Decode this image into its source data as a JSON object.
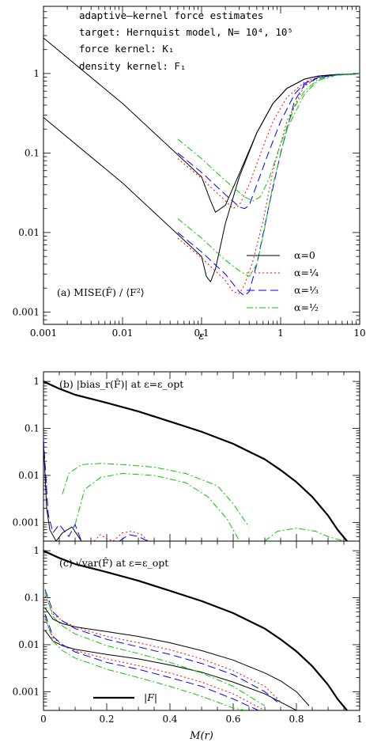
{
  "chart_data": [
    {
      "id": "a",
      "type": "line",
      "scale": {
        "x": "log",
        "y": "log"
      },
      "xlim": [
        0.001,
        10
      ],
      "ylim": [
        0.0007,
        7
      ],
      "xlabel": "ε",
      "xticklabels": [
        "0.001",
        "0.01",
        "0.1",
        "1",
        "10"
      ],
      "yticklabels": [
        "0.001",
        "0.01",
        "0.1",
        "1"
      ],
      "info_lines": [
        "adaptive–kernel force estimates",
        "target: Hernquist model, N= 10⁴, 10⁵",
        "force kernel:    K₁",
        "density kernel:  F₁"
      ],
      "label": "(a)  MISE(F̂)  /  ⟨F²⟩",
      "legend": [
        "α=0",
        "α=¼",
        "α=⅓",
        "α=½"
      ],
      "series": [
        {
          "alpha": "0",
          "N": "10^4",
          "color": "#000000",
          "dash": "",
          "x": [
            0.001,
            0.01,
            0.1,
            0.13,
            0.15,
            0.2,
            0.3,
            0.5,
            0.8,
            1.2,
            2,
            3,
            5,
            10
          ],
          "y": [
            2.8,
            0.42,
            0.05,
            0.025,
            0.018,
            0.022,
            0.055,
            0.18,
            0.42,
            0.65,
            0.85,
            0.93,
            0.97,
            0.99
          ]
        },
        {
          "alpha": "0",
          "N": "10^5",
          "color": "#000000",
          "dash": "",
          "x": [
            0.001,
            0.01,
            0.1,
            0.115,
            0.13,
            0.15,
            0.2,
            0.3,
            0.5,
            0.8,
            1.2,
            2,
            3,
            5,
            10
          ],
          "y": [
            0.28,
            0.042,
            0.005,
            0.0028,
            0.0024,
            0.0035,
            0.013,
            0.05,
            0.18,
            0.42,
            0.65,
            0.85,
            0.93,
            0.97,
            0.99
          ]
        },
        {
          "alpha": "1/4",
          "N": "10^4",
          "color": "#ff0000",
          "dash": "2,3",
          "x": [
            0.05,
            0.1,
            0.2,
            0.25,
            0.3,
            0.4,
            0.6,
            0.8,
            1.2,
            2,
            3,
            5,
            10
          ],
          "y": [
            0.085,
            0.048,
            0.025,
            0.02,
            0.022,
            0.04,
            0.12,
            0.25,
            0.5,
            0.78,
            0.9,
            0.96,
            0.99
          ]
        },
        {
          "alpha": "1/4",
          "N": "10^5",
          "color": "#ff0000",
          "dash": "2,3",
          "x": [
            0.05,
            0.1,
            0.2,
            0.25,
            0.3,
            0.35,
            0.45,
            0.6,
            0.8,
            1.2,
            2,
            3,
            5,
            10
          ],
          "y": [
            0.0085,
            0.0048,
            0.0025,
            0.0018,
            0.0017,
            0.0022,
            0.0045,
            0.014,
            0.06,
            0.25,
            0.7,
            0.88,
            0.96,
            0.99
          ]
        },
        {
          "alpha": "1/3",
          "N": "10^4",
          "color": "#0000ff",
          "dash": "10,5",
          "x": [
            0.05,
            0.1,
            0.2,
            0.3,
            0.35,
            0.4,
            0.5,
            0.7,
            1,
            1.5,
            2,
            3,
            5,
            10
          ],
          "y": [
            0.1,
            0.057,
            0.03,
            0.021,
            0.02,
            0.022,
            0.04,
            0.1,
            0.25,
            0.55,
            0.75,
            0.9,
            0.96,
            0.99
          ]
        },
        {
          "alpha": "1/3",
          "N": "10^5",
          "color": "#0000ff",
          "dash": "10,5",
          "x": [
            0.05,
            0.1,
            0.2,
            0.3,
            0.35,
            0.4,
            0.5,
            0.7,
            1,
            1.5,
            2,
            3,
            5,
            10
          ],
          "y": [
            0.01,
            0.0057,
            0.003,
            0.0018,
            0.0016,
            0.0018,
            0.004,
            0.02,
            0.1,
            0.45,
            0.72,
            0.89,
            0.96,
            0.99
          ]
        },
        {
          "alpha": "1/2",
          "N": "10^4",
          "color": "#00cc00",
          "dash": "8,3,2,3",
          "x": [
            0.05,
            0.1,
            0.2,
            0.35,
            0.45,
            0.55,
            0.7,
            1,
            1.5,
            2,
            3,
            5,
            10
          ],
          "y": [
            0.15,
            0.085,
            0.045,
            0.028,
            0.025,
            0.028,
            0.045,
            0.13,
            0.38,
            0.6,
            0.85,
            0.95,
            0.99
          ]
        },
        {
          "alpha": "1/2",
          "N": "10^5",
          "color": "#00cc00",
          "dash": "8,3,2,3",
          "x": [
            0.05,
            0.1,
            0.2,
            0.3,
            0.4,
            0.5,
            0.6,
            0.8,
            1.2,
            2,
            3,
            5,
            10
          ],
          "y": [
            0.015,
            0.0085,
            0.0045,
            0.0033,
            0.0028,
            0.004,
            0.009,
            0.04,
            0.2,
            0.55,
            0.82,
            0.95,
            0.99
          ]
        }
      ]
    },
    {
      "id": "b",
      "type": "line",
      "scale": {
        "x": "linear",
        "y": "log"
      },
      "xlim": [
        0,
        1
      ],
      "ylim": [
        0.0004,
        1.6
      ],
      "yticklabels": [
        "0.001",
        "0.01",
        "0.1",
        "1"
      ],
      "label": "(b)    |bias_r(F̂)|   at ε=ε_opt",
      "series": [
        {
          "name": "|F|",
          "color": "#000000",
          "width": 2.2,
          "dash": "",
          "x": [
            0,
            0.05,
            0.1,
            0.2,
            0.3,
            0.4,
            0.5,
            0.6,
            0.7,
            0.75,
            0.8,
            0.85,
            0.9,
            0.93,
            0.96
          ],
          "y": [
            1.0,
            0.7,
            0.52,
            0.35,
            0.23,
            0.14,
            0.085,
            0.047,
            0.022,
            0.013,
            0.0072,
            0.0035,
            0.0014,
            0.0007,
            0.0004
          ]
        },
        {
          "alpha": "1/2",
          "N": "10^4",
          "color": "#00cc00",
          "dash": "8,3,2,3",
          "x": [
            0.06,
            0.08,
            0.12,
            0.18,
            0.25,
            0.35,
            0.45,
            0.55,
            0.6,
            0.65
          ],
          "y": [
            0.004,
            0.011,
            0.017,
            0.018,
            0.017,
            0.015,
            0.011,
            0.006,
            0.0025,
            0.0008
          ]
        },
        {
          "alpha": "1/2",
          "N": "10^5",
          "color": "#00cc00",
          "dash": "8,3,2,3",
          "x": [
            0.1,
            0.13,
            0.18,
            0.25,
            0.35,
            0.45,
            0.52,
            0.58,
            0.62
          ],
          "y": [
            0.0009,
            0.005,
            0.009,
            0.011,
            0.01,
            0.007,
            0.0035,
            0.0012,
            0.0004
          ]
        },
        {
          "alpha": "1/2",
          "N": "bump",
          "color": "#00cc00",
          "dash": "8,3,2,3",
          "x": [
            0.7,
            0.74,
            0.8,
            0.86,
            0.9,
            0.95
          ],
          "y": [
            0.0004,
            0.00065,
            0.00075,
            0.00065,
            0.0005,
            0.0004
          ]
        },
        {
          "alpha": "0",
          "N": "low",
          "color": "#000000",
          "dash": "",
          "x": [
            0.0,
            0.01,
            0.02,
            0.04,
            0.06,
            0.09,
            0.12
          ],
          "y": [
            0.05,
            0.002,
            0.0007,
            0.0004,
            0.0006,
            0.0008,
            0.0004
          ]
        },
        {
          "alpha": "1/3",
          "N": "low",
          "color": "#0000ff",
          "dash": "10,5",
          "x": [
            0.0,
            0.015,
            0.03,
            0.05,
            0.08,
            0.1,
            0.12
          ],
          "y": [
            0.06,
            0.0015,
            0.0006,
            0.0009,
            0.0005,
            0.0009,
            0.0004
          ]
        },
        {
          "alpha": "1/4",
          "N": "low",
          "color": "#ff0000",
          "dash": "2,3",
          "x": [
            0.16,
            0.18,
            0.2,
            0.22
          ],
          "y": [
            0.0004,
            0.00055,
            0.00045,
            0.0004
          ]
        },
        {
          "alpha": "1/4",
          "N": "mid",
          "color": "#ff0000",
          "dash": "2,3",
          "x": [
            0.22,
            0.25,
            0.28,
            0.31,
            0.33
          ],
          "y": [
            0.0004,
            0.0006,
            0.00065,
            0.00055,
            0.0004
          ]
        },
        {
          "alpha": "1/3",
          "N": "mid",
          "color": "#0000ff",
          "dash": "10,5",
          "x": [
            0.24,
            0.27,
            0.3,
            0.33
          ],
          "y": [
            0.0004,
            0.00055,
            0.0005,
            0.0004
          ]
        }
      ]
    },
    {
      "id": "c",
      "type": "line",
      "scale": {
        "x": "linear",
        "y": "log"
      },
      "xlim": [
        0,
        1
      ],
      "ylim": [
        0.0004,
        1.6
      ],
      "xlabel": "M(r)",
      "xticklabels": [
        "0",
        "0.2",
        "0.4",
        "0.6",
        "0.8",
        "1"
      ],
      "yticklabels": [
        "0.001",
        "0.01",
        "0.1",
        "1"
      ],
      "label": "(c)    √var(F̂)   at ε=ε_opt",
      "legend": [
        "|F|"
      ],
      "series": [
        {
          "name": "|F|",
          "color": "#000000",
          "width": 2.2,
          "dash": "",
          "x": [
            0,
            0.05,
            0.1,
            0.2,
            0.3,
            0.4,
            0.5,
            0.6,
            0.7,
            0.75,
            0.8,
            0.85,
            0.9,
            0.93,
            0.96
          ],
          "y": [
            1.0,
            0.7,
            0.52,
            0.35,
            0.23,
            0.14,
            0.085,
            0.047,
            0.022,
            0.013,
            0.0072,
            0.0035,
            0.0014,
            0.0007,
            0.0004
          ]
        },
        {
          "alpha": "0",
          "N": "10^4",
          "color": "#000000",
          "dash": "",
          "x": [
            0.005,
            0.03,
            0.06,
            0.1,
            0.2,
            0.3,
            0.4,
            0.5,
            0.6,
            0.7,
            0.75,
            0.8,
            0.84
          ],
          "y": [
            0.06,
            0.035,
            0.028,
            0.024,
            0.019,
            0.015,
            0.011,
            0.0075,
            0.0047,
            0.0025,
            0.0017,
            0.001,
            0.0005
          ]
        },
        {
          "alpha": "0",
          "N": "10^5",
          "color": "#000000",
          "dash": "",
          "x": [
            0.005,
            0.03,
            0.06,
            0.1,
            0.2,
            0.3,
            0.4,
            0.5,
            0.6,
            0.7,
            0.75,
            0.8
          ],
          "y": [
            0.02,
            0.012,
            0.0095,
            0.008,
            0.0062,
            0.005,
            0.0037,
            0.0026,
            0.0016,
            0.0009,
            0.0006,
            0.0004
          ]
        },
        {
          "alpha": "1/4",
          "N": "10^4",
          "color": "#ff0000",
          "dash": "2,3",
          "x": [
            0.005,
            0.03,
            0.06,
            0.1,
            0.2,
            0.3,
            0.4,
            0.5,
            0.6,
            0.7,
            0.75
          ],
          "y": [
            0.11,
            0.045,
            0.032,
            0.024,
            0.015,
            0.011,
            0.0078,
            0.005,
            0.0028,
            0.0013,
            0.0006
          ]
        },
        {
          "alpha": "1/4",
          "N": "10^5",
          "color": "#ff0000",
          "dash": "2,3",
          "x": [
            0.005,
            0.03,
            0.06,
            0.1,
            0.2,
            0.3,
            0.4,
            0.5,
            0.6,
            0.7
          ],
          "y": [
            0.035,
            0.014,
            0.01,
            0.0075,
            0.005,
            0.0036,
            0.0025,
            0.0016,
            0.0009,
            0.0004
          ]
        },
        {
          "alpha": "1/3",
          "N": "10^4",
          "color": "#0000ff",
          "dash": "10,5",
          "x": [
            0.005,
            0.03,
            0.06,
            0.1,
            0.2,
            0.3,
            0.4,
            0.5,
            0.6,
            0.7,
            0.74
          ],
          "y": [
            0.15,
            0.05,
            0.032,
            0.022,
            0.013,
            0.009,
            0.0062,
            0.004,
            0.0023,
            0.001,
            0.0006
          ]
        },
        {
          "alpha": "1/3",
          "N": "10^5",
          "color": "#0000ff",
          "dash": "10,5",
          "x": [
            0.005,
            0.03,
            0.06,
            0.1,
            0.2,
            0.3,
            0.4,
            0.5,
            0.6,
            0.68
          ],
          "y": [
            0.045,
            0.015,
            0.01,
            0.007,
            0.0042,
            0.003,
            0.002,
            0.0013,
            0.0007,
            0.0004
          ]
        },
        {
          "alpha": "1/2",
          "N": "10^4",
          "color": "#00cc00",
          "dash": "8,3,2,3",
          "x": [
            0.005,
            0.03,
            0.06,
            0.1,
            0.2,
            0.3,
            0.4,
            0.5,
            0.6,
            0.7
          ],
          "y": [
            0.13,
            0.04,
            0.025,
            0.017,
            0.0095,
            0.0065,
            0.0042,
            0.0025,
            0.0013,
            0.0005
          ]
        },
        {
          "alpha": "1/2",
          "N": "10^5",
          "color": "#00cc00",
          "dash": "8,3,2,3",
          "x": [
            0.005,
            0.03,
            0.06,
            0.1,
            0.2,
            0.3,
            0.4,
            0.5,
            0.6,
            0.64
          ],
          "y": [
            0.04,
            0.012,
            0.0075,
            0.0052,
            0.003,
            0.002,
            0.0013,
            0.0008,
            0.00045,
            0.0004
          ]
        }
      ]
    }
  ]
}
